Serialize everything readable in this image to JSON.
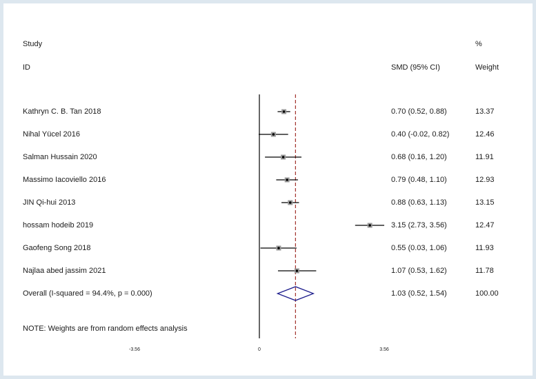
{
  "header": {
    "study_line1": "Study",
    "study_line2": "ID",
    "effect_label": "SMD (95% CI)",
    "weight_line1": "%",
    "weight_line2": "Weight"
  },
  "note": "NOTE: Weights are from random effects analysis",
  "chart_data": {
    "type": "forest",
    "xlabel": "",
    "ylabel": "",
    "xlim": [
      -3.56,
      3.56
    ],
    "x_ticks": [
      "-3.56",
      "0",
      "3.56"
    ],
    "null_line": 0,
    "overall_line": 1.03,
    "studies": [
      {
        "name": "Kathryn C. B. Tan 2018",
        "effect": 0.7,
        "lower": 0.52,
        "upper": 0.88,
        "ci_text": "0.70 (0.52, 0.88)",
        "weight": "13.37"
      },
      {
        "name": "Nihal Yücel 2016",
        "effect": 0.4,
        "lower": -0.02,
        "upper": 0.82,
        "ci_text": "0.40 (-0.02, 0.82)",
        "weight": "12.46"
      },
      {
        "name": "Salman Hussain 2020",
        "effect": 0.68,
        "lower": 0.16,
        "upper": 1.2,
        "ci_text": "0.68 (0.16, 1.20)",
        "weight": "11.91"
      },
      {
        "name": "Massimo Iacoviello 2016",
        "effect": 0.79,
        "lower": 0.48,
        "upper": 1.1,
        "ci_text": "0.79 (0.48, 1.10)",
        "weight": "12.93"
      },
      {
        "name": "JIN Qi-hui 2013",
        "effect": 0.88,
        "lower": 0.63,
        "upper": 1.13,
        "ci_text": "0.88 (0.63, 1.13)",
        "weight": "13.15"
      },
      {
        "name": "hossam hodeib 2019",
        "effect": 3.15,
        "lower": 2.73,
        "upper": 3.56,
        "ci_text": "3.15 (2.73, 3.56)",
        "weight": "12.47"
      },
      {
        "name": "Gaofeng Song 2018",
        "effect": 0.55,
        "lower": 0.03,
        "upper": 1.06,
        "ci_text": "0.55 (0.03, 1.06)",
        "weight": "11.93"
      },
      {
        "name": "Najlaa abed jassim 2021",
        "effect": 1.07,
        "lower": 0.53,
        "upper": 1.62,
        "ci_text": "1.07 (0.53, 1.62)",
        "weight": "11.78"
      }
    ],
    "overall": {
      "name": "Overall  (I-squared = 94.4%, p = 0.000)",
      "effect": 1.03,
      "lower": 0.52,
      "upper": 1.54,
      "ci_text": "1.03 (0.52, 1.54)",
      "weight": "100.00"
    },
    "colors": {
      "background": "#dde7ef",
      "panel": "#ffffff",
      "axis": "#000000",
      "overall_line": "#a0302a",
      "diamond": "#1c1c8c",
      "point": "#000000",
      "box": "#9a9a9a"
    }
  }
}
